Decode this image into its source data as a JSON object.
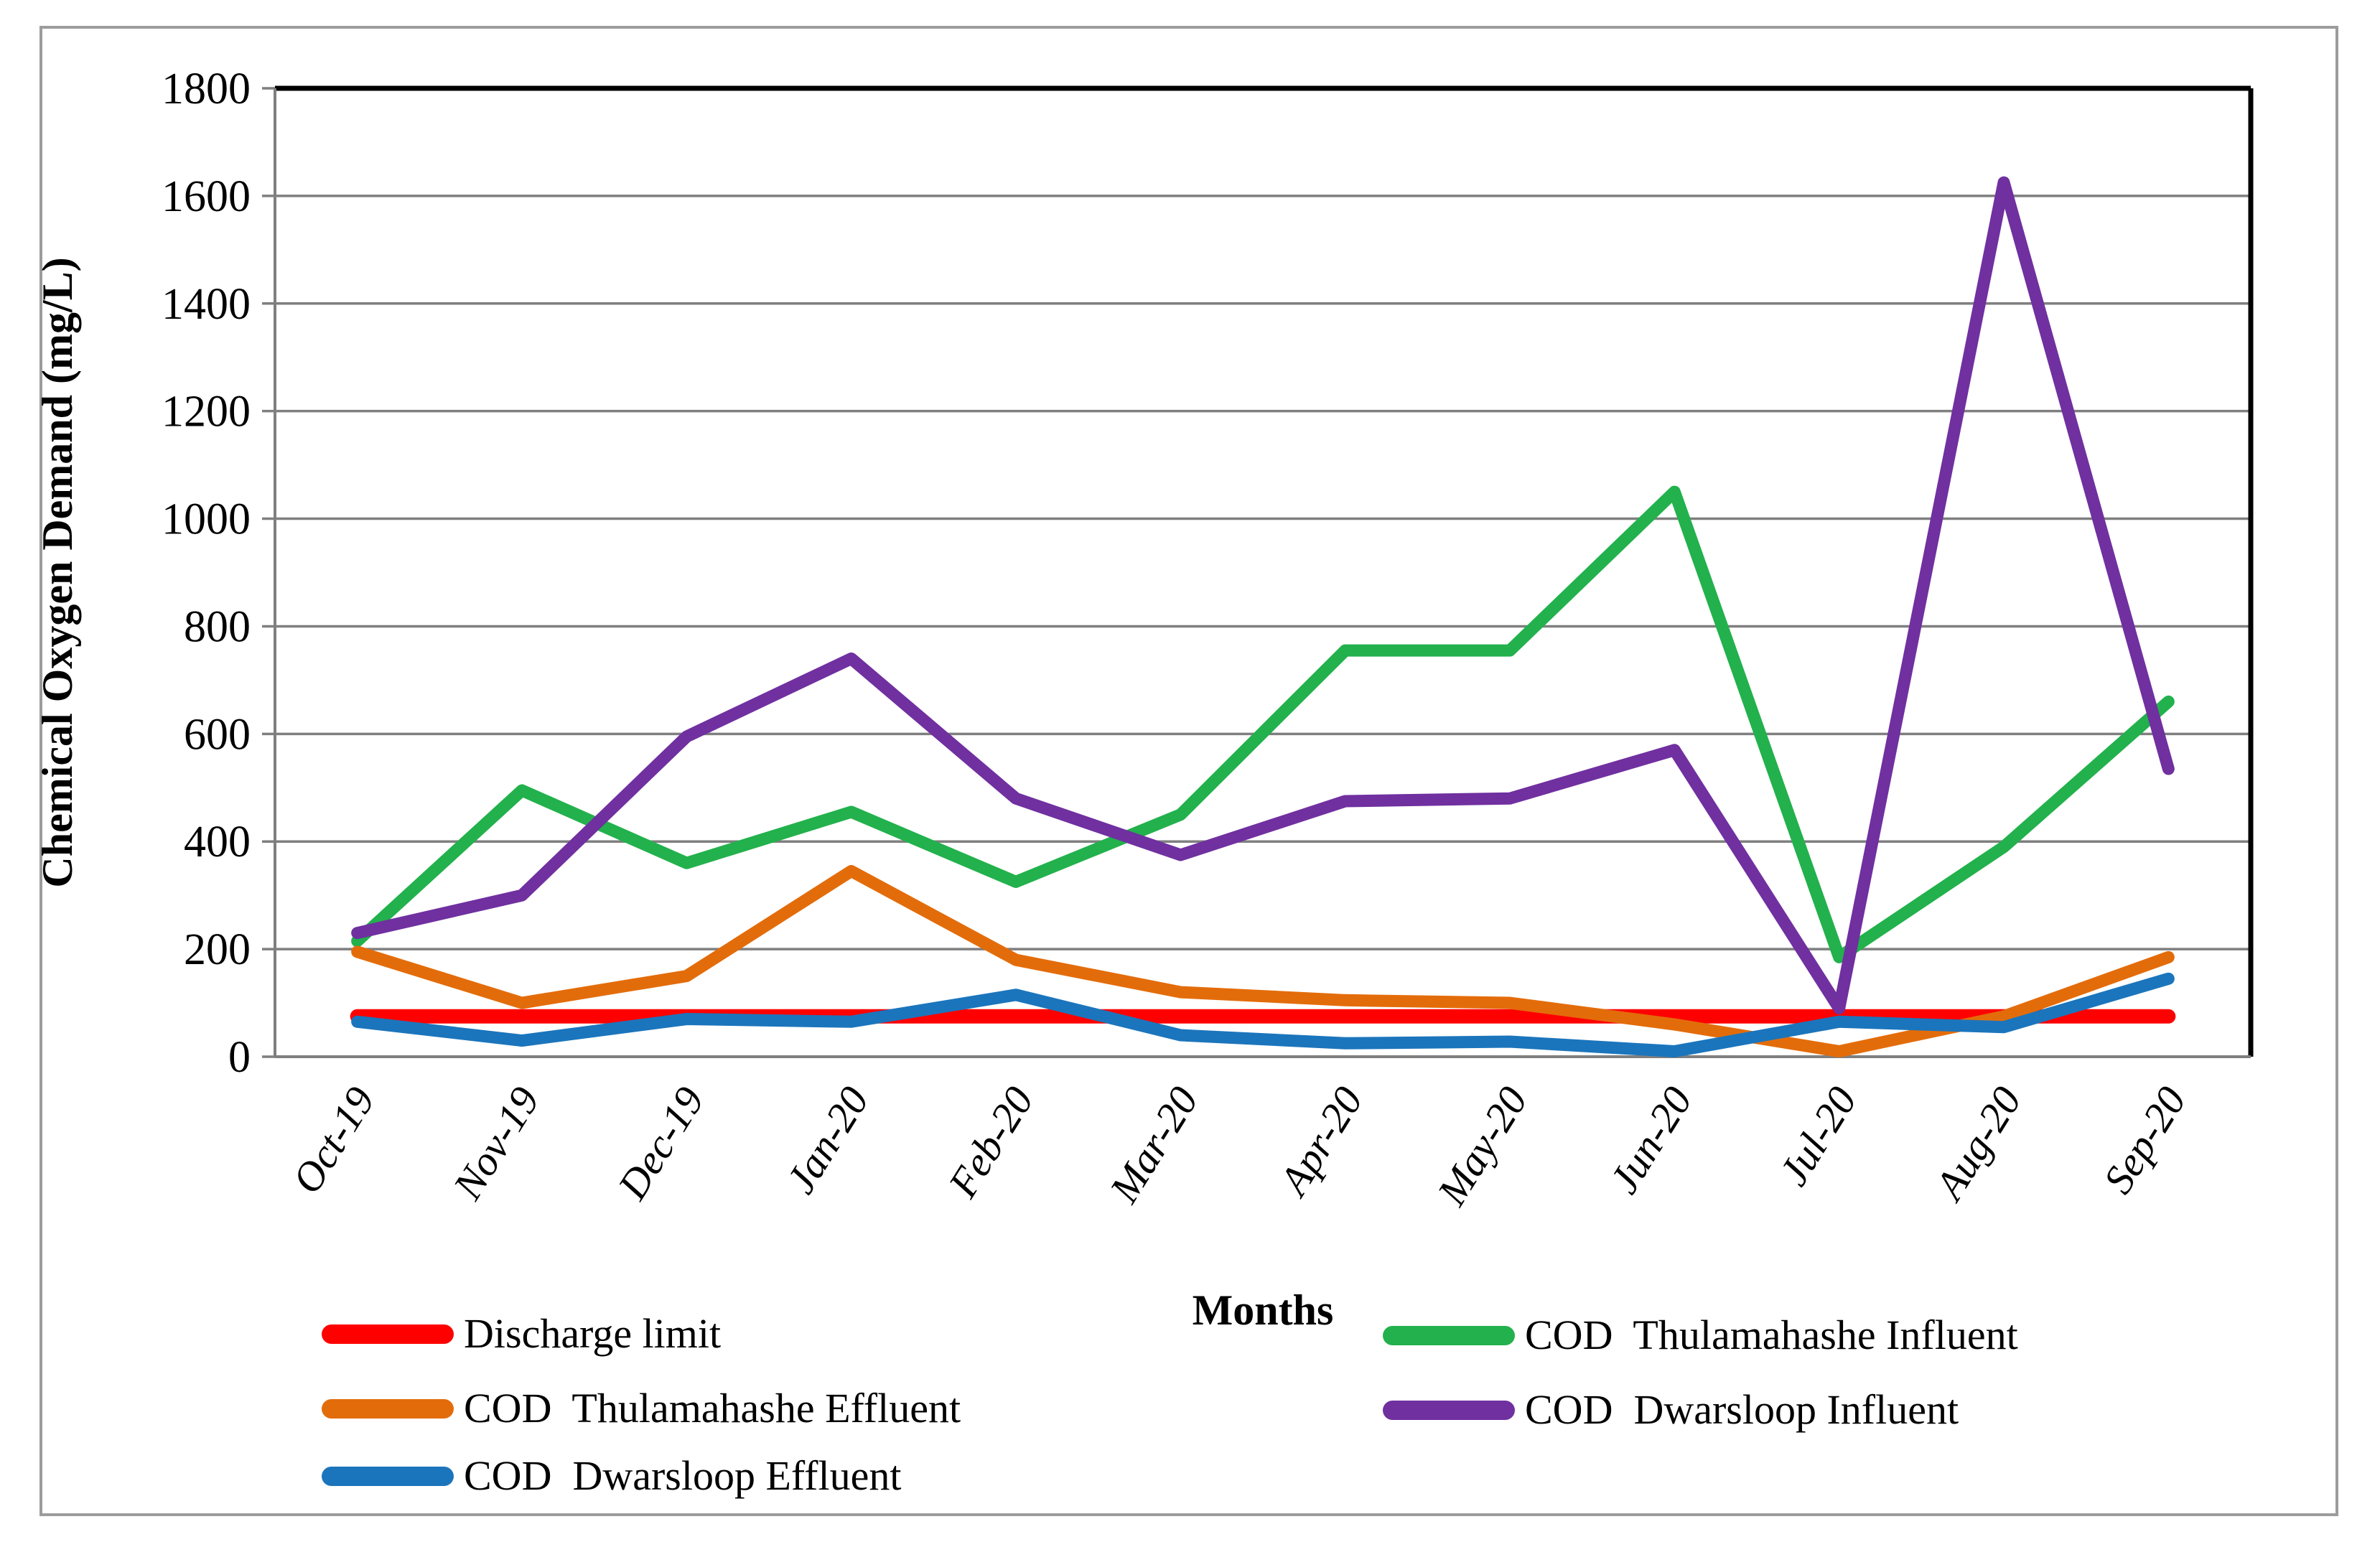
{
  "figure": {
    "background": "#ffffff",
    "border_color": "#9c9c9c"
  },
  "chart_data": {
    "type": "line",
    "title": "",
    "xlabel": "Months",
    "ylabel": "Chemical Oxygen Demand (mg/L)",
    "ylim": [
      0,
      1800
    ],
    "ytick_interval": 200,
    "grid": true,
    "gridline_color": "#7f7f7f",
    "plot_border_color": "#000000",
    "legend_position": "bottom",
    "categories": [
      "Oct-19",
      "Nov-19",
      "Dec-19",
      "Jan-20",
      "Feb-20",
      "Mar-20",
      "Apr-20",
      "May-20",
      "Jun-20",
      "Jul-20",
      "Aug-20",
      "Sep-20"
    ],
    "series": [
      {
        "name": "Discharge limit",
        "color": "#FF0000",
        "stroke_width": 20,
        "values": [
          75,
          75,
          75,
          75,
          75,
          75,
          75,
          75,
          75,
          75,
          75,
          75
        ]
      },
      {
        "name": "COD  Thulamahashe Influent",
        "color": "#22B14C",
        "stroke_width": 17,
        "values": [
          215,
          495,
          360,
          455,
          325,
          450,
          755,
          755,
          1050,
          185,
          390,
          660
        ]
      },
      {
        "name": "COD  Thulamahashe Effluent",
        "color": "#E36C0A",
        "stroke_width": 17,
        "values": [
          195,
          100,
          150,
          345,
          180,
          120,
          105,
          100,
          60,
          10,
          75,
          185
        ]
      },
      {
        "name": "COD  Dwarsloop Influent",
        "color": "#7030A0",
        "stroke_width": 17,
        "values": [
          230,
          300,
          595,
          740,
          480,
          375,
          475,
          480,
          570,
          90,
          1625,
          535
        ]
      },
      {
        "name": "COD  Dwarsloop Effluent",
        "color": "#1B75BC",
        "stroke_width": 17,
        "values": [
          65,
          30,
          70,
          65,
          115,
          40,
          25,
          28,
          10,
          65,
          55,
          145
        ]
      }
    ],
    "legend_columns": [
      [
        0,
        2,
        4
      ],
      [
        1,
        3
      ]
    ]
  }
}
